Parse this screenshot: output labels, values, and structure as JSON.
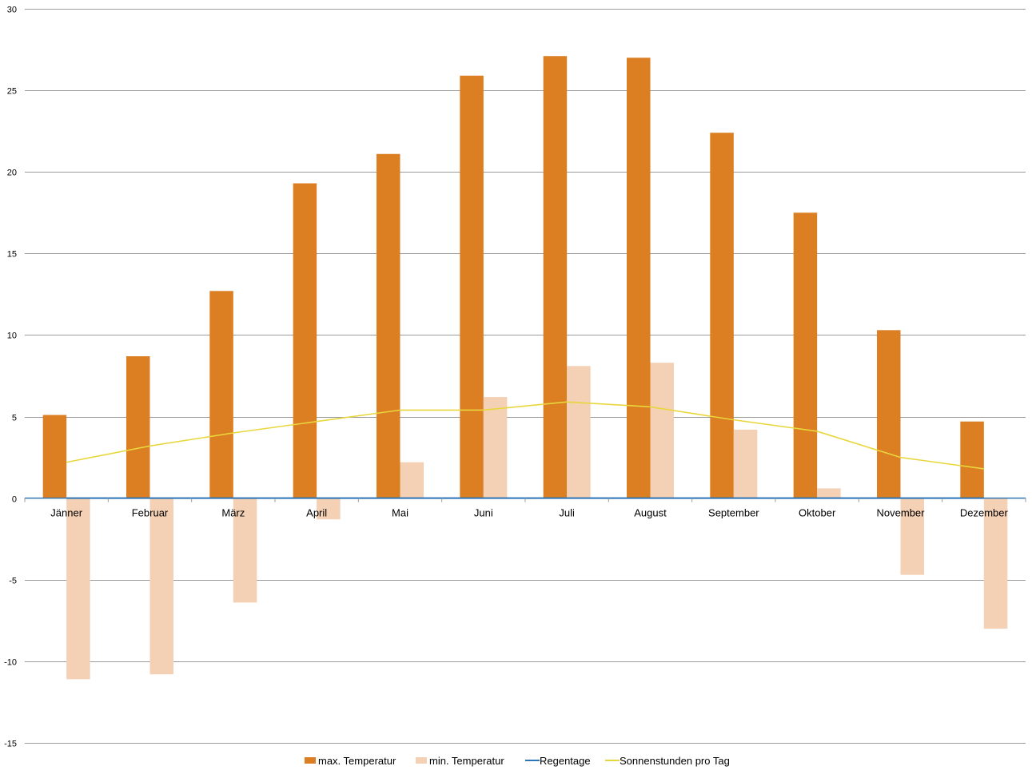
{
  "chart_data": {
    "type": "bar",
    "title": "",
    "xlabel": "",
    "ylabel": "",
    "ylim": [
      -15,
      30
    ],
    "yticks": [
      30,
      25,
      20,
      15,
      10,
      5,
      0,
      -5,
      -10,
      -15
    ],
    "grid": true,
    "legend_position": "bottom",
    "categories": [
      "Jänner",
      "Februar",
      "März",
      "April",
      "Mai",
      "Juni",
      "Juli",
      "August",
      "September",
      "Oktober",
      "November",
      "Dezember"
    ],
    "series": [
      {
        "name": "max. Temperatur",
        "kind": "bar",
        "color": "#dc7e22",
        "values": [
          5.1,
          8.7,
          12.7,
          19.3,
          21.1,
          25.9,
          27.1,
          27.0,
          22.4,
          17.5,
          10.3,
          4.7
        ]
      },
      {
        "name": "min. Temperatur",
        "kind": "bar",
        "color": "#f4d0b4",
        "values": [
          -11.1,
          -10.8,
          -6.4,
          -1.3,
          2.2,
          6.2,
          8.1,
          8.3,
          4.2,
          0.6,
          -4.7,
          -8.0
        ]
      },
      {
        "name": "Regentage",
        "kind": "line",
        "color": "#2e75b6",
        "values": [
          0,
          0,
          0,
          0,
          0,
          0,
          0,
          0,
          0,
          0,
          0,
          0
        ]
      },
      {
        "name": "Sonnenstunden pro Tag",
        "kind": "line",
        "color": "#e8d73c",
        "values": [
          2.2,
          3.2,
          4.0,
          4.7,
          5.4,
          5.4,
          5.9,
          5.6,
          4.8,
          4.1,
          2.5,
          1.8
        ]
      }
    ]
  }
}
